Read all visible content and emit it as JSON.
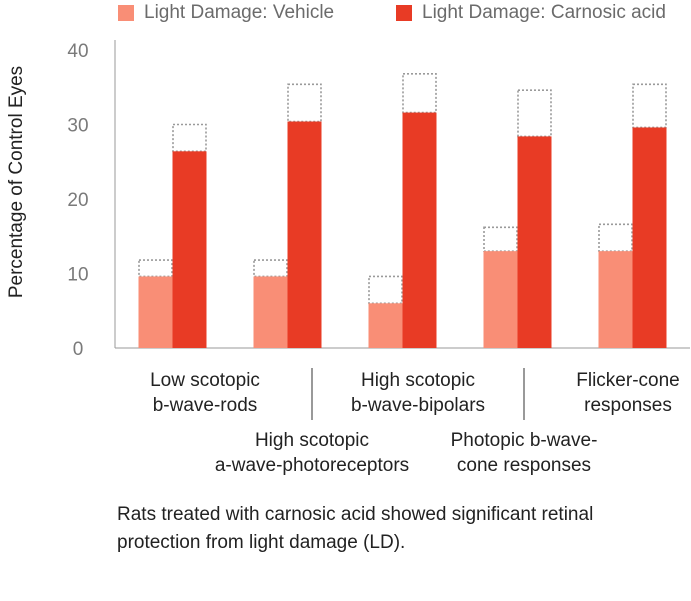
{
  "chart_data": {
    "type": "bar",
    "ylabel": "Percentage of Control Eyes",
    "ylim": [
      0,
      40
    ],
    "yticks": [
      "0",
      "10",
      "20",
      "30",
      "40"
    ],
    "categories": [
      "Low scotopic b-wave-rods",
      "High scotopic a-wave-photoreceptors",
      "High scotopic b-wave-bipolars",
      "Photopic b-wave-cone responses",
      "Flicker-cone responses"
    ],
    "series": [
      {
        "name": "Light Damage: Vehicle",
        "color": "#f98e76",
        "values": [
          9.6,
          9.6,
          6.0,
          13.0,
          13.0
        ],
        "error_upper": [
          11.8,
          11.8,
          9.6,
          16.2,
          16.6
        ]
      },
      {
        "name": "Light Damage: Carnosic acid",
        "color": "#e83b25",
        "values": [
          26.4,
          30.4,
          31.6,
          28.4,
          29.6
        ],
        "error_upper": [
          30.0,
          35.4,
          36.8,
          34.6,
          35.4
        ]
      }
    ],
    "grid": false,
    "legend_position": "top"
  },
  "category_labels": [
    {
      "line1": "Low scotopic",
      "line2": "b-wave-rods"
    },
    {
      "line1": "High scotopic",
      "line2": "a-wave-photoreceptors"
    },
    {
      "line1": "High scotopic",
      "line2": "b-wave-bipolars"
    },
    {
      "line1": "Photopic b-wave-",
      "line2": "cone responses"
    },
    {
      "line1": "Flicker-cone",
      "line2": "responses"
    }
  ],
  "caption": {
    "line1": "Rats treated with carnosic acid showed significant retinal",
    "line2": "protection from light damage (LD)."
  },
  "colors": {
    "axis": "#9a9a9a",
    "tick_text": "#7a7a7a",
    "error_box": "#9a9a9a"
  }
}
